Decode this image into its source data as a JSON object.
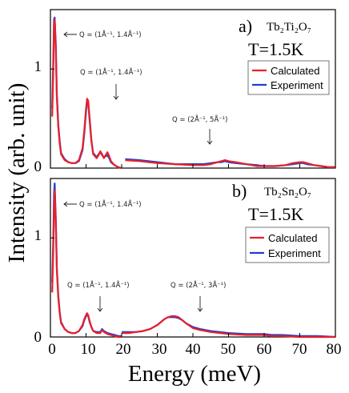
{
  "colors": {
    "calculated": "#e8202a",
    "experiment": "#1f3fcf"
  },
  "chart_data": [
    {
      "type": "line",
      "panel_label": "a)",
      "compound": "Tb₂Ti₂O₇",
      "temperature": "T=1.5K",
      "xlim": [
        0,
        80
      ],
      "ylim": [
        0,
        1.6
      ],
      "yticks": [
        "0",
        "1"
      ],
      "legend": [
        "Calculated",
        "Experiment"
      ],
      "annotations": [
        "Q = (1Å⁻¹, 1.4Å⁻¹)",
        "Q = (1Å⁻¹, 1.4Å⁻¹)",
        "Q = (2Å⁻¹, 5Å⁻¹)"
      ],
      "series": [
        {
          "name": "Calculated",
          "segments": [
            {
              "x": [
                0.5,
                0.8,
                1.0,
                1.2,
                1.5,
                1.8,
                2.2,
                2.6,
                3.0,
                4.0,
                5.0,
                6.0,
                7.0,
                8.0,
                9.0,
                9.5,
                10.0,
                10.3,
                10.6,
                11.0,
                11.5,
                12.0,
                13.0,
                13.5,
                14.0,
                14.5,
                15.0,
                15.5,
                16.0,
                16.5,
                17.0,
                18.0,
                19.0,
                20.0
              ],
              "y": [
                0.52,
                1.0,
                1.45,
                1.5,
                1.2,
                0.72,
                0.42,
                0.25,
                0.14,
                0.08,
                0.06,
                0.05,
                0.05,
                0.08,
                0.2,
                0.38,
                0.6,
                0.7,
                0.68,
                0.5,
                0.28,
                0.14,
                0.1,
                0.13,
                0.17,
                0.14,
                0.1,
                0.13,
                0.16,
                0.12,
                0.07,
                0.03,
                0.01,
                0.0
              ]
            },
            {
              "x": [
                21,
                25,
                30,
                35,
                40,
                43,
                45,
                47,
                48,
                49,
                50,
                52,
                55,
                58,
                60,
                63,
                66,
                68,
                70,
                71,
                72,
                74,
                76,
                78,
                80
              ],
              "y": [
                0.08,
                0.07,
                0.05,
                0.04,
                0.03,
                0.03,
                0.04,
                0.06,
                0.07,
                0.08,
                0.07,
                0.06,
                0.04,
                0.02,
                0.02,
                0.02,
                0.03,
                0.05,
                0.06,
                0.06,
                0.05,
                0.03,
                0.02,
                0.01,
                0.01
              ]
            }
          ]
        },
        {
          "name": "Experiment",
          "segments": [
            {
              "x": [
                0.5,
                0.8,
                1.0,
                1.2,
                1.5,
                1.8,
                2.2,
                2.6,
                3.0,
                4.0,
                5.0,
                6.0,
                7.0,
                8.0,
                9.0,
                9.5,
                10.0,
                10.3,
                10.6,
                11.0,
                11.5,
                12.0,
                13.0,
                13.5,
                14.0,
                14.5,
                15.0,
                15.5,
                16.0,
                16.5,
                17.0,
                18.0,
                19.0,
                20.0
              ],
              "y": [
                0.6,
                1.1,
                1.5,
                1.52,
                1.25,
                0.75,
                0.44,
                0.27,
                0.15,
                0.09,
                0.06,
                0.05,
                0.05,
                0.07,
                0.18,
                0.35,
                0.57,
                0.68,
                0.66,
                0.48,
                0.27,
                0.15,
                0.11,
                0.14,
                0.16,
                0.13,
                0.11,
                0.12,
                0.13,
                0.1,
                0.06,
                0.03,
                0.01,
                0.0
              ]
            },
            {
              "x": [
                21,
                25,
                30,
                35,
                40,
                43,
                45,
                47,
                48,
                49,
                50,
                52,
                55,
                58,
                60,
                63,
                66,
                68,
                70,
                71,
                72,
                74,
                76,
                78,
                80
              ],
              "y": [
                0.09,
                0.08,
                0.06,
                0.04,
                0.04,
                0.04,
                0.05,
                0.06,
                0.06,
                0.07,
                0.06,
                0.05,
                0.04,
                0.03,
                0.02,
                0.02,
                0.03,
                0.04,
                0.05,
                0.05,
                0.04,
                0.03,
                0.02,
                0.01,
                0.01
              ]
            }
          ]
        }
      ]
    },
    {
      "type": "line",
      "panel_label": "b)",
      "compound": "Tb₂Sn₂O₇",
      "temperature": "T=1.5K",
      "xlim": [
        0,
        80
      ],
      "ylim": [
        0,
        1.6
      ],
      "yticks": [
        "0",
        "1"
      ],
      "xticks": [
        "0",
        "10",
        "20",
        "30",
        "40",
        "50",
        "60",
        "70",
        "80"
      ],
      "legend": [
        "Calculated",
        "Experiment"
      ],
      "annotations": [
        "Q = (1Å⁻¹, 1.4Å⁻¹)",
        "Q = (1Å⁻¹, 1.4Å⁻¹)",
        "Q = (2Å⁻¹, 3Å⁻¹)"
      ],
      "series": [
        {
          "name": "Calculated",
          "segments": [
            {
              "x": [
                0.5,
                0.8,
                1.0,
                1.2,
                1.5,
                1.8,
                2.2,
                2.6,
                3.0,
                4.0,
                5.0,
                6.0,
                7.0,
                8.0,
                9.0,
                9.5,
                10.0,
                10.3,
                10.6,
                11.0,
                11.5,
                12.0,
                13.0,
                14.0,
                14.5,
                15.0,
                16.0,
                17.0,
                18.0,
                19.0,
                20.0
              ],
              "y": [
                0.45,
                0.9,
                1.3,
                1.48,
                1.15,
                0.68,
                0.4,
                0.24,
                0.14,
                0.08,
                0.05,
                0.04,
                0.04,
                0.06,
                0.12,
                0.18,
                0.22,
                0.24,
                0.22,
                0.16,
                0.1,
                0.06,
                0.04,
                0.04,
                0.07,
                0.05,
                0.03,
                0.02,
                0.01,
                0.0,
                0.0
              ]
            },
            {
              "x": [
                20,
                22,
                24,
                26,
                28,
                30,
                31,
                32,
                33,
                34,
                35,
                36,
                37,
                38,
                40,
                42,
                45,
                50,
                55,
                58,
                60,
                62,
                65,
                70,
                75,
                80
              ],
              "y": [
                0.04,
                0.04,
                0.05,
                0.06,
                0.08,
                0.12,
                0.15,
                0.18,
                0.2,
                0.21,
                0.21,
                0.2,
                0.17,
                0.14,
                0.09,
                0.07,
                0.05,
                0.03,
                0.02,
                0.02,
                0.02,
                0.01,
                0.01,
                0.0,
                0.0,
                0.0
              ]
            }
          ]
        },
        {
          "name": "Experiment",
          "segments": [
            {
              "x": [
                0.5,
                0.8,
                1.0,
                1.2,
                1.5,
                1.8,
                2.2,
                2.6,
                3.0,
                4.0,
                5.0,
                6.0,
                7.0,
                8.0,
                9.0,
                9.5,
                10.0,
                10.3,
                10.6,
                11.0,
                11.5,
                12.0,
                13.0,
                14.0,
                14.5,
                15.0,
                16.0,
                17.0,
                18.0,
                19.0,
                20.0
              ],
              "y": [
                0.55,
                1.0,
                1.45,
                1.55,
                1.2,
                0.7,
                0.42,
                0.25,
                0.15,
                0.08,
                0.05,
                0.04,
                0.04,
                0.06,
                0.11,
                0.17,
                0.21,
                0.23,
                0.21,
                0.15,
                0.1,
                0.06,
                0.05,
                0.05,
                0.08,
                0.06,
                0.04,
                0.03,
                0.02,
                0.01,
                0.01
              ]
            },
            {
              "x": [
                20,
                22,
                24,
                26,
                28,
                30,
                31,
                32,
                33,
                34,
                35,
                36,
                37,
                38,
                40,
                42,
                45,
                50,
                55,
                58,
                60,
                62,
                65,
                70,
                75,
                80
              ],
              "y": [
                0.05,
                0.05,
                0.05,
                0.06,
                0.08,
                0.12,
                0.15,
                0.18,
                0.2,
                0.2,
                0.2,
                0.19,
                0.17,
                0.14,
                0.1,
                0.08,
                0.06,
                0.04,
                0.03,
                0.03,
                0.03,
                0.02,
                0.02,
                0.01,
                0.01,
                0.0
              ]
            }
          ]
        }
      ]
    }
  ],
  "axes": {
    "ylabel": "Intensity (arb. unit)",
    "xlabel": "Energy (meV)"
  }
}
